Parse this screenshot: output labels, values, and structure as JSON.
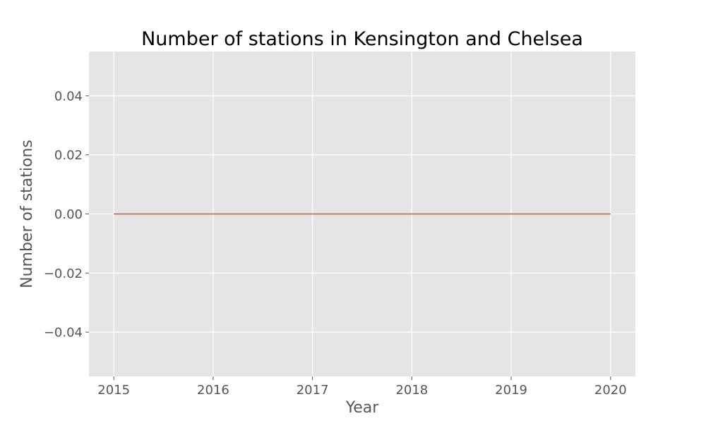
{
  "chart_data": {
    "type": "line",
    "title": "Number of stations in Kensington and Chelsea",
    "xlabel": "Year",
    "ylabel": "Number of stations",
    "x": [
      2015,
      2016,
      2017,
      2018,
      2019,
      2020
    ],
    "series": [
      {
        "values": [
          0,
          0,
          0,
          0,
          0,
          0
        ],
        "color": "#E24A33"
      }
    ],
    "xlim": [
      2014.75,
      2020.25
    ],
    "ylim": [
      -0.055,
      0.055
    ],
    "xticks": [
      2015,
      2016,
      2017,
      2018,
      2019,
      2020
    ],
    "xtick_labels": [
      "2015",
      "2016",
      "2017",
      "2018",
      "2019",
      "2020"
    ],
    "yticks": [
      -0.04,
      -0.02,
      0,
      0.02,
      0.04
    ],
    "ytick_labels": [
      "−0.04",
      "−0.02",
      "0.00",
      "0.02",
      "0.04"
    ],
    "grid": true,
    "style": "ggplot",
    "background_color": "#E5E5E5",
    "grid_color": "#FFFFFF",
    "tick_color": "#555555"
  }
}
